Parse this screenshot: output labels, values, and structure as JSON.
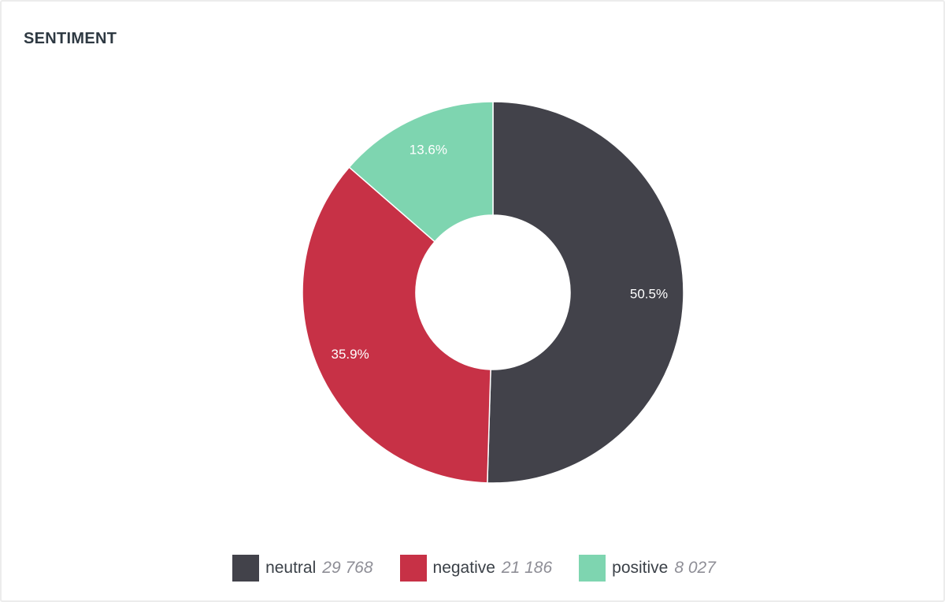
{
  "card": {
    "title": "SENTIMENT"
  },
  "chart_data": {
    "type": "pie",
    "donut": true,
    "categories": [
      "neutral",
      "negative",
      "positive"
    ],
    "values": [
      29768,
      21186,
      8027
    ],
    "percent_labels": [
      "50.5%",
      "35.9%",
      "13.6%"
    ],
    "count_labels": [
      "29 768",
      "21 186",
      "8 027"
    ],
    "colors": [
      "#42424a",
      "#c73146",
      "#7ed5b0"
    ],
    "start": "top, clockwise",
    "legend_position": "bottom-center"
  }
}
